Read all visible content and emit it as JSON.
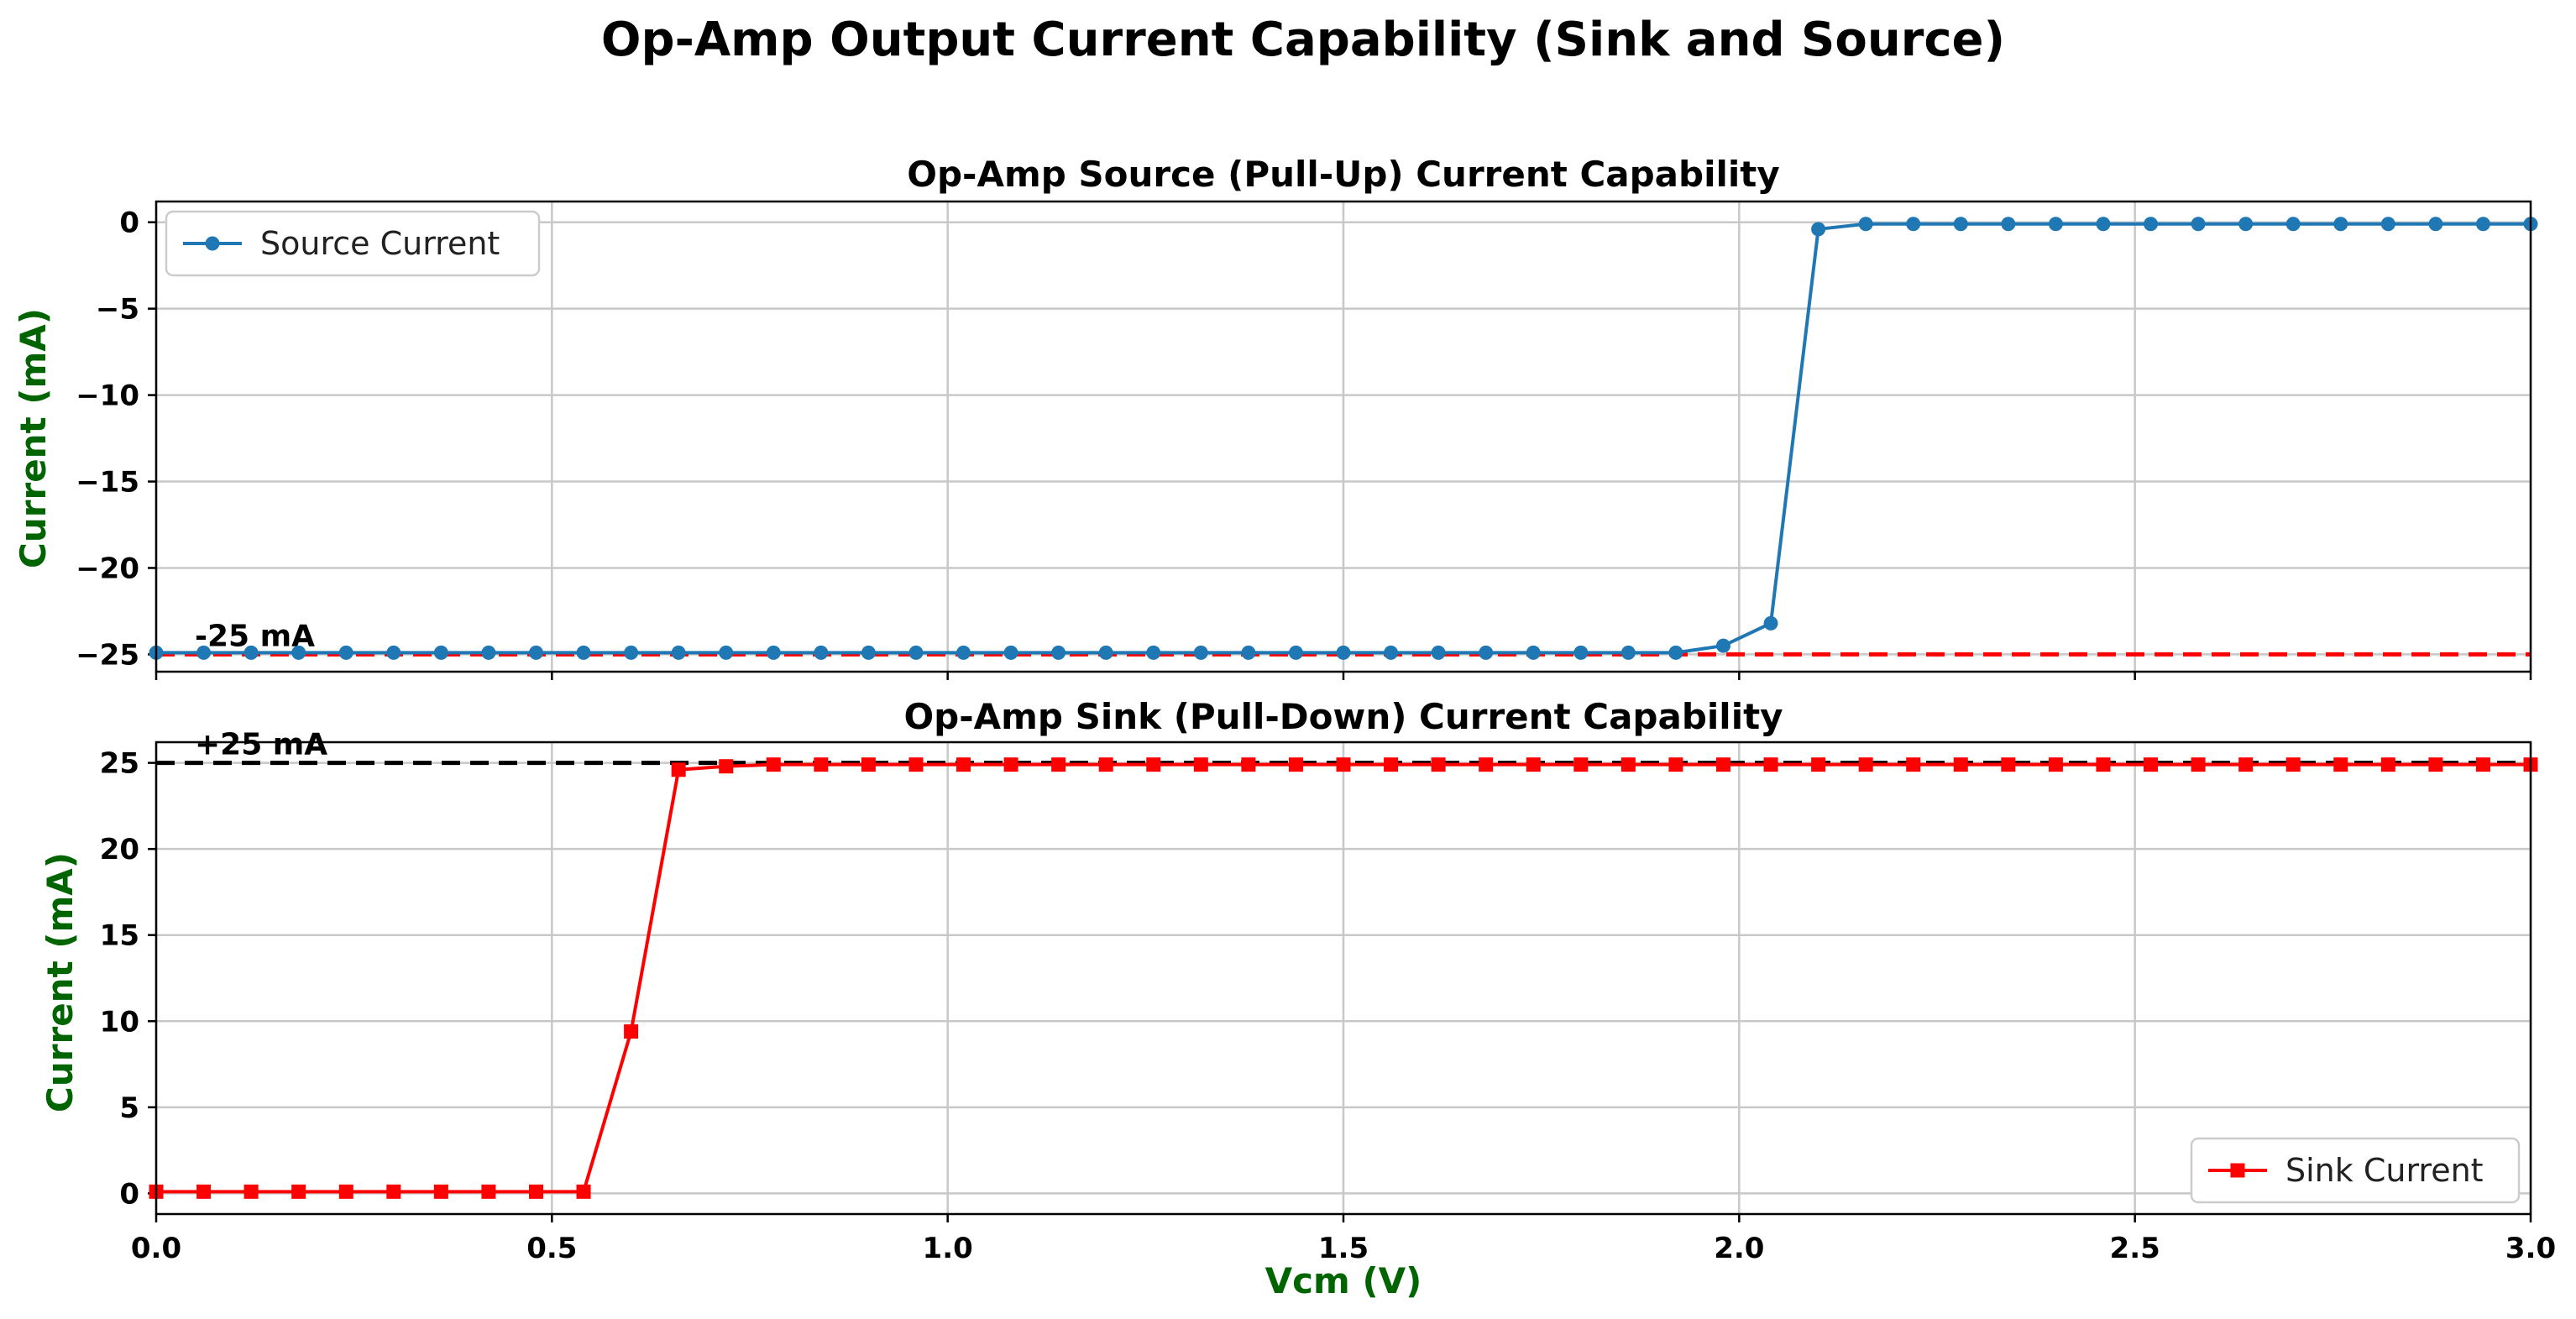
{
  "figure": {
    "suptitle": "Op-Amp Output Current Capability (Sink and Source)",
    "xlabel": "Vcm (V)",
    "label_color": "#006400"
  },
  "chart_data": [
    {
      "type": "line",
      "title": "Op-Amp Source (Pull-Up) Current Capability",
      "ylabel": "Current (mA)",
      "xlim": [
        0,
        3.0
      ],
      "ylim": [
        -26,
        1.2
      ],
      "yticks": [
        0,
        -5,
        -10,
        -15,
        -20,
        -25
      ],
      "grid": true,
      "legend": "top-left",
      "series": [
        {
          "name": "Source Current",
          "color": "#1f77b4",
          "marker": "circle",
          "x": [
            0.0,
            0.06,
            0.12,
            0.18,
            0.24,
            0.3,
            0.36,
            0.42,
            0.48,
            0.54,
            0.6,
            0.66,
            0.72,
            0.78,
            0.84,
            0.9,
            0.96,
            1.02,
            1.08,
            1.14,
            1.2,
            1.26,
            1.32,
            1.38,
            1.44,
            1.5,
            1.56,
            1.62,
            1.68,
            1.74,
            1.8,
            1.86,
            1.92,
            1.98,
            2.04,
            2.1,
            2.16,
            2.22,
            2.28,
            2.34,
            2.4,
            2.46,
            2.52,
            2.58,
            2.64,
            2.7,
            2.76,
            2.82,
            2.88,
            2.94,
            3.0
          ],
          "y": [
            -24.9,
            -24.9,
            -24.9,
            -24.9,
            -24.9,
            -24.9,
            -24.9,
            -24.9,
            -24.9,
            -24.9,
            -24.9,
            -24.9,
            -24.9,
            -24.9,
            -24.9,
            -24.9,
            -24.9,
            -24.9,
            -24.9,
            -24.9,
            -24.9,
            -24.9,
            -24.9,
            -24.9,
            -24.9,
            -24.9,
            -24.9,
            -24.9,
            -24.9,
            -24.9,
            -24.9,
            -24.9,
            -24.9,
            -24.5,
            -23.2,
            -0.4,
            -0.1,
            -0.1,
            -0.1,
            -0.1,
            -0.1,
            -0.1,
            -0.1,
            -0.1,
            -0.1,
            -0.1,
            -0.1,
            -0.1,
            -0.1,
            -0.1,
            -0.1
          ]
        }
      ],
      "reference_line": {
        "y": -25,
        "color": "#ff0000",
        "style": "dashed",
        "label": "-25 mA"
      }
    },
    {
      "type": "line",
      "title": "Op-Amp Sink (Pull-Down) Current Capability",
      "ylabel": "Current (mA)",
      "xlabel": "Vcm (V)",
      "xlim": [
        0,
        3.0
      ],
      "ylim": [
        -1.2,
        26.2
      ],
      "xticks": [
        "0.0",
        "0.5",
        "1.0",
        "1.5",
        "2.0",
        "2.5",
        "3.0"
      ],
      "yticks": [
        0,
        5,
        10,
        15,
        20,
        25
      ],
      "grid": true,
      "legend": "bottom-right",
      "series": [
        {
          "name": "Sink Current",
          "color": "#ff0000",
          "marker": "square",
          "x": [
            0.0,
            0.06,
            0.12,
            0.18,
            0.24,
            0.3,
            0.36,
            0.42,
            0.48,
            0.54,
            0.6,
            0.66,
            0.72,
            0.78,
            0.84,
            0.9,
            0.96,
            1.02,
            1.08,
            1.14,
            1.2,
            1.26,
            1.32,
            1.38,
            1.44,
            1.5,
            1.56,
            1.62,
            1.68,
            1.74,
            1.8,
            1.86,
            1.92,
            1.98,
            2.04,
            2.1,
            2.16,
            2.22,
            2.28,
            2.34,
            2.4,
            2.46,
            2.52,
            2.58,
            2.64,
            2.7,
            2.76,
            2.82,
            2.88,
            2.94,
            3.0
          ],
          "y": [
            0.1,
            0.1,
            0.1,
            0.1,
            0.1,
            0.1,
            0.1,
            0.1,
            0.1,
            0.1,
            9.4,
            24.6,
            24.8,
            24.9,
            24.9,
            24.9,
            24.9,
            24.9,
            24.9,
            24.9,
            24.9,
            24.9,
            24.9,
            24.9,
            24.9,
            24.9,
            24.9,
            24.9,
            24.9,
            24.9,
            24.9,
            24.9,
            24.9,
            24.9,
            24.9,
            24.9,
            24.9,
            24.9,
            24.9,
            24.9,
            24.9,
            24.9,
            24.9,
            24.9,
            24.9,
            24.9,
            24.9,
            24.9,
            24.9,
            24.9,
            24.9
          ]
        }
      ],
      "reference_line": {
        "y": 25,
        "color": "#000000",
        "style": "dashed",
        "label": "+25 mA"
      }
    }
  ]
}
